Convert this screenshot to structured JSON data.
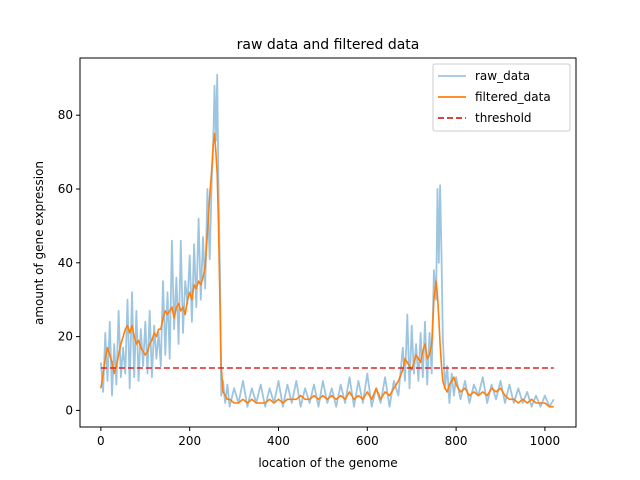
{
  "chart_data": {
    "type": "line",
    "title": "raw data and filtered data",
    "xlabel": "location of the genome",
    "ylabel": "amount of gene expression",
    "xlim": [
      -47,
      1070
    ],
    "ylim": [
      -4.5,
      95.5
    ],
    "xticks": [
      0,
      200,
      400,
      600,
      800,
      1000
    ],
    "yticks": [
      0,
      20,
      40,
      60,
      80
    ],
    "grid": false,
    "legend_position": "top-right",
    "series": [
      {
        "name": "raw_data",
        "color": "#9ec5e0",
        "style": "solid",
        "x": [
          0,
          5,
          10,
          15,
          20,
          25,
          30,
          35,
          40,
          45,
          50,
          55,
          60,
          65,
          70,
          75,
          80,
          85,
          90,
          95,
          100,
          105,
          110,
          115,
          120,
          125,
          130,
          135,
          140,
          145,
          150,
          155,
          160,
          165,
          170,
          175,
          180,
          185,
          190,
          195,
          200,
          205,
          210,
          215,
          220,
          225,
          230,
          235,
          240,
          245,
          250,
          253,
          256,
          259,
          262,
          265,
          268,
          271,
          275,
          280,
          285,
          290,
          300,
          310,
          320,
          330,
          340,
          350,
          360,
          370,
          380,
          390,
          400,
          410,
          420,
          430,
          440,
          450,
          460,
          470,
          480,
          490,
          500,
          510,
          520,
          530,
          540,
          550,
          560,
          570,
          580,
          590,
          600,
          610,
          620,
          630,
          640,
          650,
          660,
          670,
          680,
          685,
          690,
          695,
          700,
          705,
          710,
          715,
          720,
          725,
          730,
          735,
          740,
          745,
          750,
          755,
          758,
          761,
          764,
          767,
          770,
          775,
          780,
          785,
          790,
          795,
          800,
          810,
          820,
          830,
          840,
          850,
          860,
          870,
          880,
          890,
          900,
          910,
          920,
          930,
          940,
          950,
          960,
          970,
          980,
          990,
          1000,
          1010,
          1020
        ],
        "values": [
          13,
          5,
          21,
          8,
          24,
          4,
          18,
          7,
          27,
          9,
          17,
          10,
          30,
          6,
          32,
          9,
          27,
          8,
          22,
          12,
          24,
          10,
          27,
          9,
          23,
          14,
          21,
          12,
          35,
          15,
          32,
          14,
          46,
          22,
          36,
          18,
          46,
          21,
          35,
          29,
          42,
          24,
          45,
          28,
          52,
          30,
          47,
          33,
          60,
          41,
          64,
          72,
          88,
          73,
          91,
          60,
          38,
          4,
          8,
          2,
          7,
          1,
          6,
          2,
          8,
          1,
          6,
          2,
          7,
          1,
          6,
          2,
          8,
          1,
          7,
          2,
          8,
          1,
          6,
          2,
          7,
          1,
          8,
          2,
          6,
          1,
          7,
          2,
          9,
          1,
          8,
          2,
          10,
          1,
          6,
          2,
          9,
          1,
          8,
          4,
          17,
          8,
          26,
          6,
          23,
          10,
          18,
          8,
          21,
          9,
          24,
          7,
          21,
          10,
          38,
          30,
          60,
          40,
          61,
          42,
          20,
          6,
          12,
          2,
          10,
          4,
          9,
          3,
          8,
          2,
          7,
          4,
          9,
          2,
          7,
          3,
          8,
          2,
          7,
          2,
          6,
          2,
          5,
          1,
          4,
          1,
          4,
          1,
          3
        ]
      },
      {
        "name": "filtered_data",
        "color": "#ff7f0e",
        "style": "solid",
        "x": [
          0,
          5,
          10,
          15,
          20,
          25,
          30,
          35,
          40,
          45,
          50,
          55,
          60,
          65,
          70,
          75,
          80,
          85,
          90,
          95,
          100,
          105,
          110,
          115,
          120,
          125,
          130,
          135,
          140,
          145,
          150,
          155,
          160,
          165,
          170,
          175,
          180,
          185,
          190,
          195,
          200,
          205,
          210,
          215,
          220,
          225,
          230,
          235,
          240,
          245,
          250,
          253,
          256,
          259,
          262,
          265,
          268,
          271,
          275,
          280,
          285,
          290,
          300,
          310,
          320,
          330,
          340,
          350,
          360,
          370,
          380,
          390,
          400,
          410,
          420,
          430,
          440,
          450,
          460,
          470,
          480,
          490,
          500,
          510,
          520,
          530,
          540,
          550,
          560,
          570,
          580,
          590,
          600,
          610,
          620,
          630,
          640,
          650,
          660,
          670,
          680,
          685,
          690,
          695,
          700,
          705,
          710,
          715,
          720,
          725,
          730,
          735,
          740,
          745,
          750,
          755,
          758,
          761,
          764,
          767,
          770,
          775,
          780,
          785,
          790,
          795,
          800,
          810,
          820,
          830,
          840,
          850,
          860,
          870,
          880,
          890,
          900,
          910,
          920,
          930,
          940,
          950,
          960,
          970,
          980,
          990,
          1000,
          1010,
          1020
        ],
        "values": [
          6,
          10,
          14,
          17,
          15,
          13,
          10,
          12,
          15,
          18,
          20,
          22,
          23,
          21,
          23,
          20,
          18,
          19,
          17,
          16,
          15,
          16,
          18,
          19,
          21,
          20,
          22,
          22,
          25,
          27,
          26,
          27,
          28,
          25,
          28,
          29,
          27,
          28,
          26,
          30,
          32,
          30,
          34,
          33,
          35,
          34,
          36,
          39,
          48,
          58,
          66,
          72,
          75,
          70,
          64,
          50,
          30,
          12,
          5,
          4,
          3,
          3,
          2,
          2,
          3,
          2,
          3,
          2,
          2,
          2,
          3,
          2,
          3,
          2,
          3,
          3,
          3,
          4,
          3,
          3,
          4,
          3,
          4,
          3,
          4,
          3,
          4,
          3,
          5,
          3,
          4,
          3,
          5,
          3,
          6,
          3,
          5,
          4,
          6,
          8,
          11,
          14,
          13,
          12,
          11,
          13,
          15,
          14,
          13,
          16,
          18,
          14,
          15,
          18,
          30,
          35,
          31,
          25,
          18,
          12,
          8,
          6,
          5,
          7,
          8,
          9,
          7,
          5,
          6,
          4,
          5,
          4,
          5,
          4,
          6,
          5,
          6,
          4,
          3,
          3,
          2,
          3,
          2,
          3,
          2,
          2,
          2,
          1,
          1
        ]
      },
      {
        "name": "threshold",
        "color": "#d62728",
        "style": "dashed",
        "x": [
          0,
          1020
        ],
        "values": [
          11.5,
          11.5
        ]
      }
    ]
  }
}
